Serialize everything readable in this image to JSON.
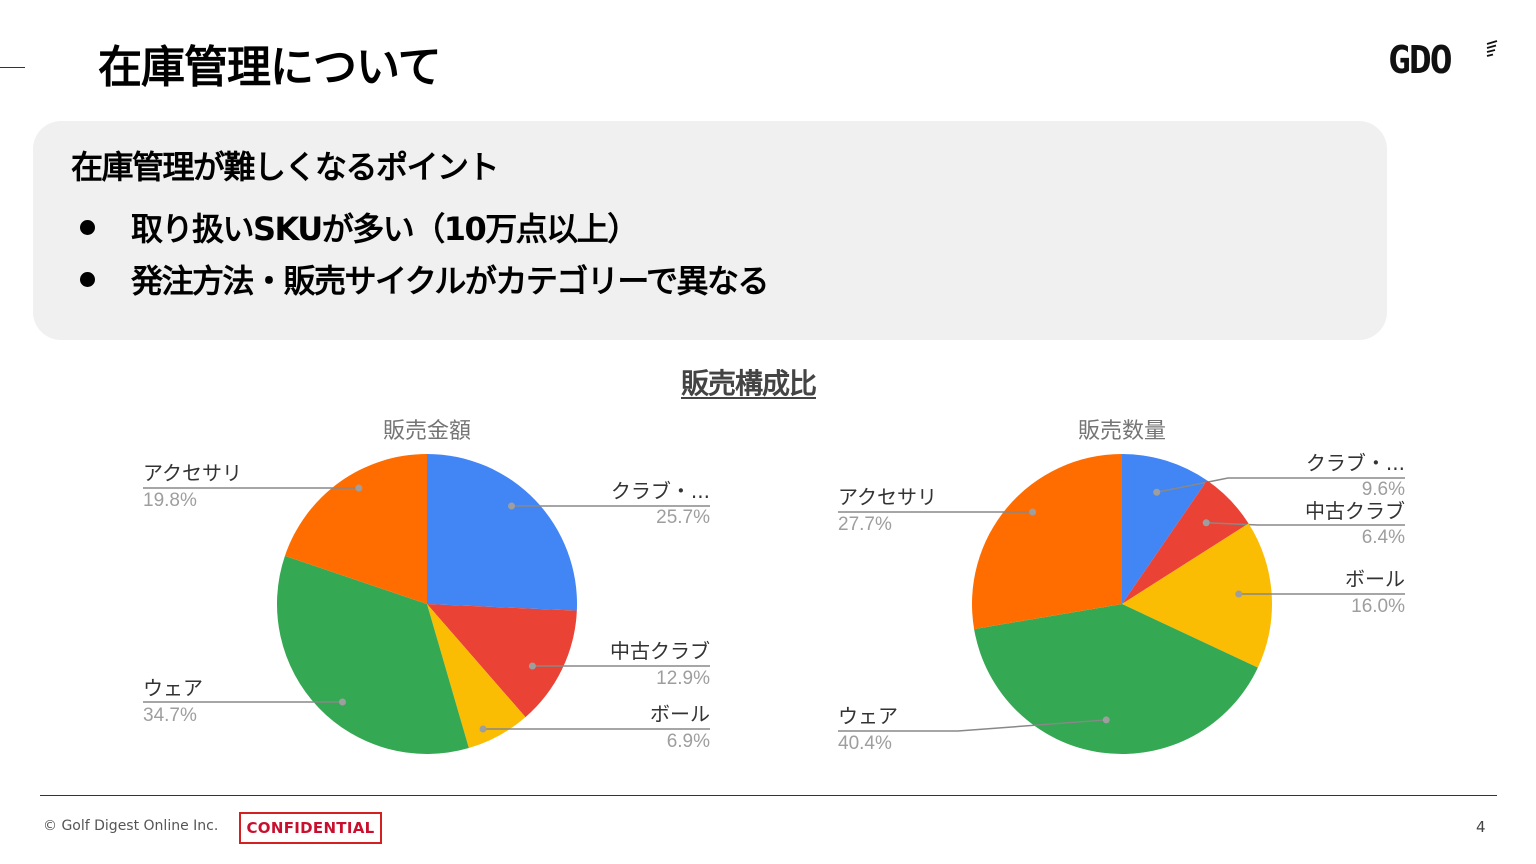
{
  "slide": {
    "title": "在庫管理について",
    "logo": "GDO",
    "points": {
      "heading": "在庫管理が難しくなるポイント",
      "items": [
        "取り扱いSKUが多い（10万点以上）",
        "発注方法・販売サイクルがカテゴリーで異なる"
      ]
    },
    "section_title": "販売構成比"
  },
  "footer": {
    "copyright": "© Golf Digest Online Inc.",
    "confidential": "CONFIDENTIAL",
    "page_number": "4"
  },
  "colors": {
    "blue": "#4285f4",
    "red": "#ea4335",
    "yellow": "#fbbc04",
    "green": "#34a853",
    "orange": "#ff6d01",
    "confidential_red": "#c8102e"
  },
  "chart_data": [
    {
      "type": "pie",
      "title": "販売金額",
      "categories": [
        "クラブ・...",
        "中古クラブ",
        "ボール",
        "ウェア",
        "アクセサリ"
      ],
      "values": [
        25.7,
        12.9,
        6.9,
        34.7,
        19.8
      ],
      "labels": [
        "25.7%",
        "12.9%",
        "6.9%",
        "34.7%",
        "19.8%"
      ],
      "colors": [
        "#4285f4",
        "#ea4335",
        "#fbbc04",
        "#34a853",
        "#ff6d01"
      ],
      "start_angle": "12 o'clock, clockwise",
      "legend": "labeled slices"
    },
    {
      "type": "pie",
      "title": "販売数量",
      "categories": [
        "クラブ・...",
        "中古クラブ",
        "ボール",
        "ウェア",
        "アクセサリ"
      ],
      "values": [
        9.6,
        6.4,
        16.0,
        40.4,
        27.7
      ],
      "labels": [
        "9.6%",
        "6.4%",
        "16.0%",
        "40.4%",
        "27.7%"
      ],
      "colors": [
        "#4285f4",
        "#ea4335",
        "#fbbc04",
        "#34a853",
        "#ff6d01"
      ],
      "start_angle": "12 o'clock, clockwise",
      "legend": "labeled slices"
    }
  ]
}
